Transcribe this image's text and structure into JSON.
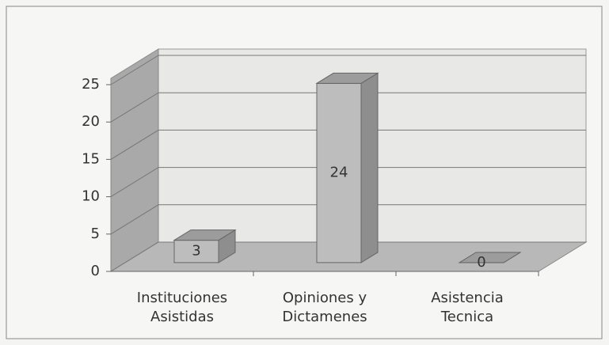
{
  "chart_data": {
    "type": "bar3d",
    "categories": [
      "Instituciones Asistidas",
      "Opiniones y Dictamenes",
      "Asistencia Tecnica"
    ],
    "values": [
      3,
      24,
      0
    ],
    "color": "#bdbdbd",
    "ylim": [
      0,
      25
    ],
    "yticks": [
      0,
      5,
      10,
      15,
      20,
      25
    ],
    "grid": true
  }
}
